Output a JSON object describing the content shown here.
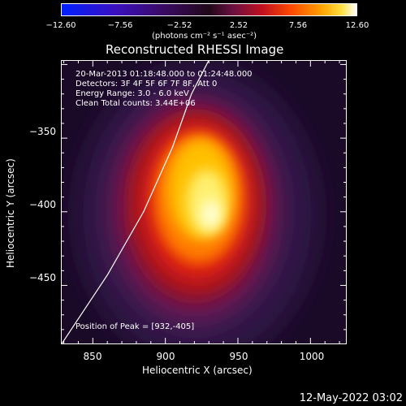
{
  "colorbar": {
    "tick_labels": [
      "−12.60",
      "−7.56",
      "−2.52",
      "2.52",
      "7.56",
      "12.60"
    ],
    "unit": "(photons cm⁻² s⁻¹ asec⁻²)"
  },
  "chart_data": {
    "type": "heatmap",
    "title": "Reconstructed RHESSI Image",
    "xlabel": "Heliocentric X (arcsec)",
    "ylabel": "Heliocentric Y (arcsec)",
    "x_ticks": [
      "850",
      "900",
      "950",
      "1000"
    ],
    "y_ticks": [
      "−350",
      "−400",
      "−450"
    ],
    "xlim": [
      828,
      1025
    ],
    "ylim": [
      -490,
      -297
    ],
    "clim": [
      -12.6,
      12.6
    ],
    "colormap": "black-purple-red-orange-yellow-white",
    "peak": {
      "x": 932,
      "y": -405
    },
    "annotations": [
      "20-Mar-2013 01:18:48.000 to 01:24:48.000",
      "Detectors: 3F 4F 5F 6F 7F 8F, Att 0",
      "Energy Range: 3.0 - 6.0 keV",
      "Clean    Total counts: 3.44E+06"
    ],
    "peak_label": "Position of Peak = [932,-405]",
    "limb_curve": [
      [
        827,
        -492
      ],
      [
        860,
        -443
      ],
      [
        885,
        -400
      ],
      [
        905,
        -356
      ],
      [
        918,
        -320
      ],
      [
        930,
        -297
      ]
    ]
  },
  "footer": {
    "date": "12-May-2022 03:02"
  }
}
